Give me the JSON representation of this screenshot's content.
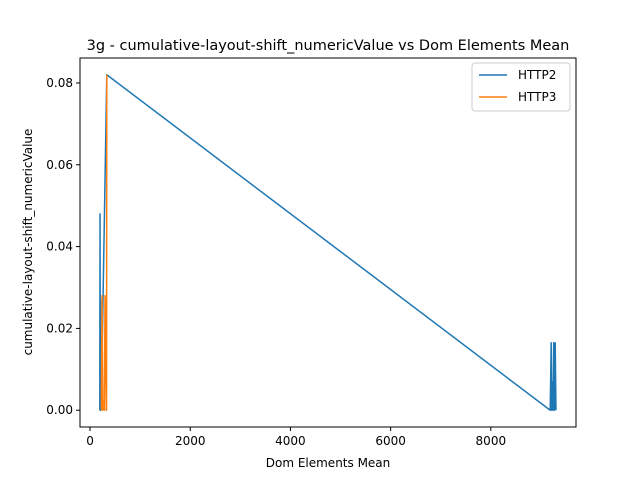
{
  "chart_data": {
    "type": "line",
    "title": "3g - cumulative-layout-shift_numericValue vs Dom Elements Mean",
    "xlabel": "Dom Elements Mean",
    "ylabel": "cumulative-layout-shift_numericValue",
    "xlim": [
      -200,
      9700
    ],
    "ylim": [
      -0.0041,
      0.0861
    ],
    "xticks": [
      0,
      2000,
      4000,
      6000,
      8000
    ],
    "xtick_labels": [
      "0",
      "2000",
      "4000",
      "6000",
      "8000"
    ],
    "yticks": [
      0.0,
      0.02,
      0.04,
      0.06,
      0.08
    ],
    "ytick_labels": [
      "0.00",
      "0.02",
      "0.04",
      "0.06",
      "0.08"
    ],
    "grid": false,
    "legend_position": "top-right",
    "series": [
      {
        "name": "HTTP2",
        "color": "#1f77b4",
        "x": [
          195,
          200,
          205,
          210,
          215,
          225,
          335,
          9185,
          9205,
          9215,
          9225,
          9240,
          9255,
          9270,
          9285,
          9300
        ],
        "y": [
          0.0,
          0.048,
          0.0,
          0.027,
          0.0,
          0.002,
          0.082,
          0.0,
          0.0165,
          0.0,
          0.007,
          0.0,
          0.0165,
          0.0,
          0.0165,
          0.0
        ]
      },
      {
        "name": "HTTP3",
        "color": "#ff7f0e",
        "x": [
          225,
          240,
          255,
          270,
          285,
          300,
          325,
          330,
          335
        ],
        "y": [
          0.0,
          0.028,
          0.0,
          0.002,
          0.0,
          0.028,
          0.0,
          0.0,
          0.082
        ]
      }
    ]
  }
}
